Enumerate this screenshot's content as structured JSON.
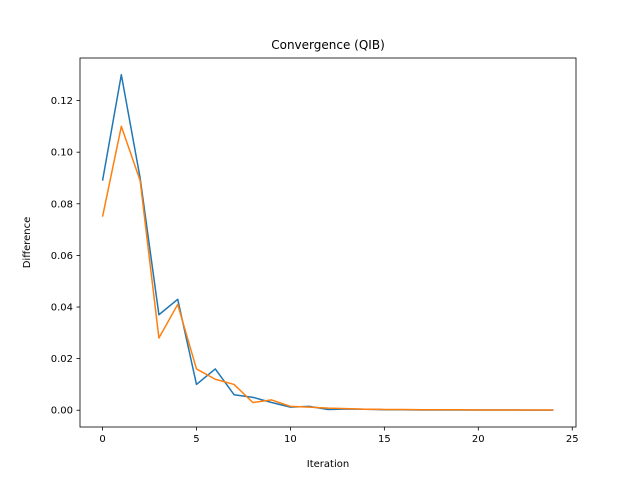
{
  "chart_data": {
    "type": "line",
    "title": "Convergence (QIB)",
    "xlabel": "Iteration",
    "ylabel": "Difference",
    "xlim": [
      -1.2,
      25.2
    ],
    "ylim": [
      -0.0065,
      0.1365
    ],
    "grid": false,
    "legend": "none",
    "x_ticks": [
      0,
      5,
      10,
      15,
      20,
      25
    ],
    "x_tick_labels": [
      "0",
      "5",
      "10",
      "15",
      "20",
      "25"
    ],
    "y_ticks": [
      0.0,
      0.02,
      0.04,
      0.06,
      0.08,
      0.1,
      0.12
    ],
    "y_tick_labels": [
      "0.00",
      "0.02",
      "0.04",
      "0.06",
      "0.08",
      "0.10",
      "0.12"
    ],
    "x": [
      0,
      1,
      2,
      3,
      4,
      5,
      6,
      7,
      8,
      9,
      10,
      11,
      12,
      13,
      14,
      15,
      16,
      17,
      18,
      19,
      20,
      21,
      22,
      23,
      24
    ],
    "series": [
      {
        "color": "#1f77b4",
        "values": [
          0.089,
          0.13,
          0.09,
          0.037,
          0.043,
          0.01,
          0.016,
          0.006,
          0.005,
          0.003,
          0.0012,
          0.0015,
          0.0003,
          0.0005,
          0.0004,
          0.0002,
          0.0002,
          0.0001,
          0.0001,
          0.0001,
          0.0001,
          0.0001,
          0.0001,
          5e-05,
          5e-05
        ]
      },
      {
        "color": "#ff7f0e",
        "values": [
          0.075,
          0.11,
          0.089,
          0.028,
          0.041,
          0.016,
          0.012,
          0.01,
          0.003,
          0.004,
          0.0015,
          0.0012,
          0.0008,
          0.0006,
          0.0004,
          0.0003,
          0.0003,
          0.0002,
          0.0002,
          0.0002,
          0.0001,
          0.0001,
          0.0001,
          0.0001,
          0.0001
        ]
      }
    ]
  }
}
